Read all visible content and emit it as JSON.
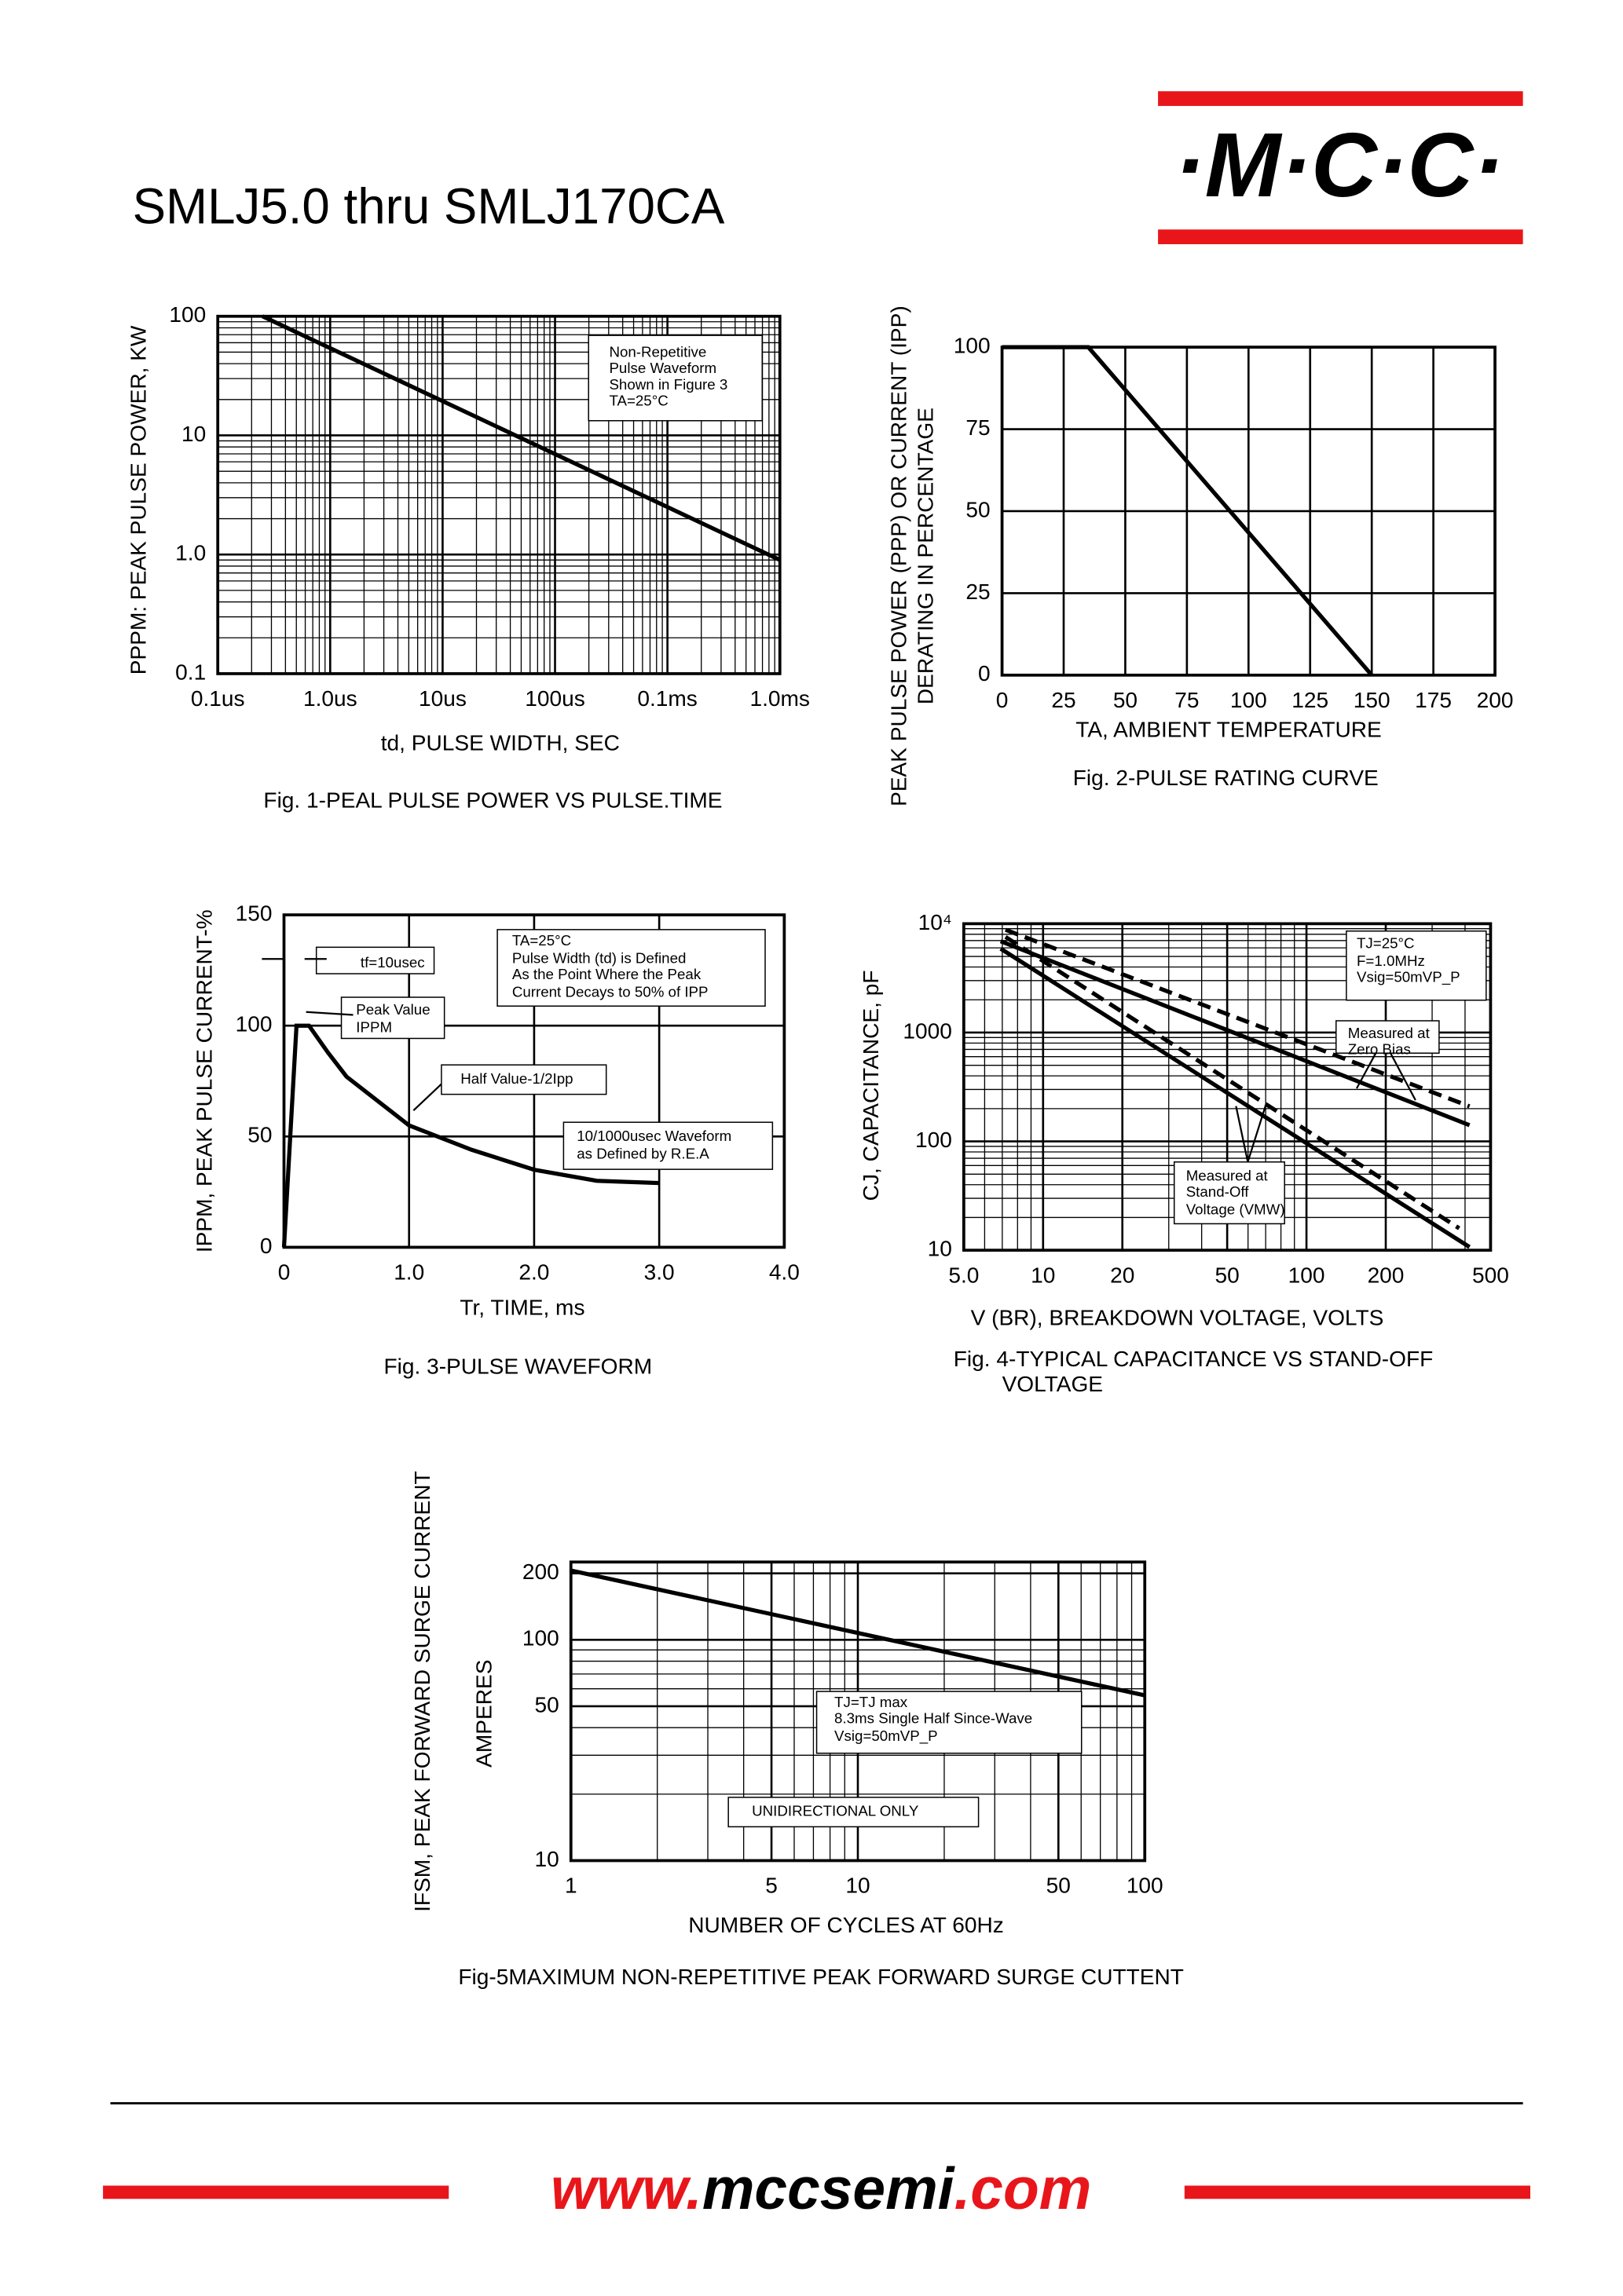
{
  "header": {
    "title": "SMLJ5.0 thru SMLJ170CA",
    "logo": "·M·C·C·"
  },
  "footer": {
    "url": [
      "www.",
      "mccsemi",
      ".com"
    ]
  },
  "chart_data": [
    {
      "type": "line",
      "title": "Fig. 1-PEAL PULSE POWER VS PULSE.TIME",
      "xlabel": "td, PULSE WIDTH, SEC",
      "ylabel": "PPPM: PEAK PULSE POWER, KW",
      "xlog": true,
      "ylog": true,
      "grid": true,
      "xlim": [
        1e-07,
        0.01
      ],
      "ylim": [
        0.1,
        100
      ],
      "xticks": [
        {
          "value": 1e-07,
          "label": "0.1us"
        },
        {
          "value": 1e-06,
          "label": "1.0us"
        },
        {
          "value": 1e-05,
          "label": "10us"
        },
        {
          "value": 0.0001,
          "label": "100us"
        },
        {
          "value": 0.001,
          "label": "0.1ms"
        },
        {
          "value": 0.01,
          "label": "1.0ms"
        }
      ],
      "yticks": [
        0.1,
        {
          "value": 1,
          "label": "1.0"
        },
        10,
        100
      ],
      "series": [
        {
          "color": "#000000",
          "x": [
            2.5e-07,
            0.01
          ],
          "values": [
            100,
            0.9
          ]
        }
      ],
      "annotations": [
        "Non-Repetitive",
        "Pulse Waveform",
        "Shown in Figure 3",
        "TA=25°C"
      ]
    },
    {
      "type": "line",
      "title": "Fig. 2-PULSE RATING CURVE",
      "xlabel": "TA, AMBIENT TEMPERATURE",
      "ylabel": [
        "PEAK PULSE POWER (PPP) OR CURRENT (IPP)",
        "DERATING IN PERCENTAGE"
      ],
      "grid": true,
      "xlim": [
        0,
        200
      ],
      "ylim": [
        0,
        100
      ],
      "xticks": [
        0,
        25,
        50,
        75,
        100,
        125,
        150,
        175,
        200
      ],
      "yticks": [
        0,
        25,
        50,
        75,
        100
      ],
      "series": [
        {
          "color": "#000000",
          "x": [
            0,
            35,
            150
          ],
          "values": [
            100,
            100,
            0
          ]
        }
      ],
      "annotations": []
    },
    {
      "type": "line",
      "title": "Fig. 3-PULSE WAVEFORM",
      "xlabel": "Tr, TIME, ms",
      "ylabel": "IPPM, PEAK PULSE CURRENT-%",
      "grid": true,
      "xlim": [
        0,
        4
      ],
      "ylim": [
        0,
        150
      ],
      "xticks": [
        0,
        {
          "value": 1,
          "label": "1.0"
        },
        {
          "value": 2,
          "label": "2.0"
        },
        {
          "value": 3,
          "label": "3.0"
        },
        {
          "value": 4,
          "label": "4.0"
        }
      ],
      "yticks": [
        0,
        50,
        100,
        150
      ],
      "series": [
        {
          "color": "#000000",
          "x": [
            0,
            0.1,
            0.2,
            0.35,
            0.5,
            0.75,
            1.0,
            1.5,
            2.0,
            2.5,
            3.0
          ],
          "values": [
            0,
            100,
            100,
            88,
            77,
            66,
            55,
            44,
            35,
            30,
            29
          ]
        }
      ],
      "annotations": [
        "tf=10usec",
        "TA=25°C",
        "Pulse Width (td) is Defined",
        "As the Point Where the Peak",
        "Current Decays to 50% of IPP",
        "Peak Value",
        "IPPM",
        "Half Value-1/2Ipp",
        "10/1000usec Waveform",
        "as Defined by R.E.A"
      ]
    },
    {
      "type": "line",
      "title": [
        "Fig. 4-TYPICAL CAPACITANCE VS STAND-OFF",
        "VOLTAGE"
      ],
      "xlabel": "V (BR), BREAKDOWN VOLTAGE, VOLTS",
      "ylabel": "CJ, CAPACITANCE, pF",
      "xlog": true,
      "ylog": true,
      "grid": true,
      "xlim": [
        5,
        500
      ],
      "ylim": [
        10,
        10000
      ],
      "xticks": [
        {
          "value": 5,
          "label": "5.0"
        },
        10,
        20,
        50,
        100,
        200,
        500
      ],
      "yticks": [
        10,
        100,
        1000,
        {
          "value": 10000,
          "label": "10⁴"
        }
      ],
      "series": [
        {
          "color": "#000000",
          "dash": false,
          "x": [
            6.9,
            416
          ],
          "values": [
            6900,
            141
          ]
        },
        {
          "color": "#000000",
          "dash": true,
          "x": [
            7.2,
            416
          ],
          "values": [
            8800,
            210
          ]
        },
        {
          "color": "#000000",
          "dash": false,
          "x": [
            6.9,
            416
          ],
          "values": [
            5900,
            10.7
          ]
        },
        {
          "color": "#000000",
          "dash": true,
          "x": [
            7.2,
            380
          ],
          "values": [
            7560,
            15.9
          ]
        }
      ],
      "annotations": [
        "TJ=25°C",
        "F=1.0MHz",
        "Vsig=50mVP_P",
        "Measured at",
        "Zero Bias",
        "Measured at",
        "Stand-Off",
        "Voltage (VMW)"
      ]
    },
    {
      "type": "line",
      "title": "Fig-5MAXIMUM NON-REPETITIVE PEAK FORWARD SURGE CUTTENT",
      "xlabel": "NUMBER OF CYCLES AT 60Hz",
      "ylabel": [
        "IFSM, PEAK FORWARD SURGE CURRENT",
        "AMPERES"
      ],
      "xlog": true,
      "ylog": true,
      "grid": true,
      "xlim": [
        1,
        100
      ],
      "ylim": [
        10,
        225
      ],
      "xticks": [
        1,
        5,
        10,
        50,
        100
      ],
      "yticks": [
        10,
        50,
        100,
        200
      ],
      "series": [
        {
          "color": "#000000",
          "x": [
            1,
            100
          ],
          "values": [
            206,
            56
          ]
        }
      ],
      "annotations": [
        "TJ=TJ max",
        "8.3ms Single Half Since-Wave",
        "Vsig=50mVP_P",
        "UNIDIRECTIONAL ONLY"
      ]
    }
  ]
}
